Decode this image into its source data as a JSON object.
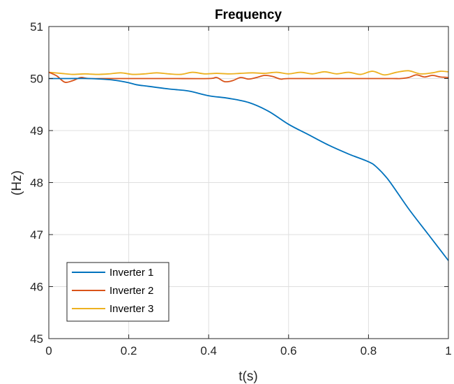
{
  "chart_data": {
    "type": "line",
    "title": "Frequency",
    "xlabel": "t(s)",
    "ylabel": "(Hz)",
    "xlim": [
      0,
      1
    ],
    "ylim": [
      45,
      51
    ],
    "xticks": [
      0,
      0.2,
      0.4,
      0.6,
      0.8,
      1
    ],
    "xtick_labels": [
      "0",
      "0.2",
      "0.4",
      "0.6",
      "0.8",
      "1"
    ],
    "yticks": [
      45,
      46,
      47,
      48,
      49,
      50,
      51
    ],
    "ytick_labels": [
      "45",
      "46",
      "47",
      "48",
      "49",
      "50",
      "51"
    ],
    "grid": true,
    "legend_position": "bottom-left",
    "series": [
      {
        "name": "Inverter 1",
        "color": "#0072BD",
        "x": [
          0,
          0.05,
          0.1,
          0.15,
          0.18,
          0.2,
          0.22,
          0.25,
          0.3,
          0.35,
          0.4,
          0.45,
          0.5,
          0.55,
          0.6,
          0.65,
          0.7,
          0.75,
          0.8,
          0.82,
          0.85,
          0.9,
          0.95,
          1.0
        ],
        "y": [
          50.0,
          50.0,
          50.0,
          49.98,
          49.95,
          49.92,
          49.88,
          49.85,
          49.8,
          49.76,
          49.67,
          49.62,
          49.54,
          49.37,
          49.12,
          48.92,
          48.72,
          48.55,
          48.4,
          48.3,
          48.05,
          47.5,
          47.0,
          46.5
        ]
      },
      {
        "name": "Inverter 2",
        "color": "#D95319",
        "x": [
          0,
          0.02,
          0.04,
          0.06,
          0.08,
          0.1,
          0.15,
          0.2,
          0.3,
          0.4,
          0.42,
          0.44,
          0.46,
          0.48,
          0.5,
          0.52,
          0.54,
          0.56,
          0.58,
          0.6,
          0.7,
          0.8,
          0.86,
          0.88,
          0.9,
          0.92,
          0.94,
          0.96,
          0.98,
          1.0
        ],
        "y": [
          50.12,
          50.05,
          49.93,
          49.96,
          50.02,
          50.0,
          50.0,
          50.0,
          50.0,
          50.0,
          50.02,
          49.94,
          49.96,
          50.02,
          49.99,
          50.02,
          50.06,
          50.04,
          49.99,
          50.0,
          50.0,
          50.0,
          50.0,
          50.0,
          50.02,
          50.07,
          50.03,
          50.06,
          50.03,
          50.02
        ]
      },
      {
        "name": "Inverter 3",
        "color": "#EDB120",
        "x": [
          0,
          0.03,
          0.06,
          0.09,
          0.12,
          0.15,
          0.18,
          0.21,
          0.24,
          0.27,
          0.3,
          0.33,
          0.36,
          0.39,
          0.42,
          0.45,
          0.48,
          0.51,
          0.54,
          0.57,
          0.6,
          0.63,
          0.66,
          0.69,
          0.72,
          0.75,
          0.78,
          0.81,
          0.84,
          0.87,
          0.9,
          0.93,
          0.96,
          0.98,
          1.0
        ],
        "y": [
          50.12,
          50.1,
          50.08,
          50.09,
          50.08,
          50.09,
          50.11,
          50.08,
          50.09,
          50.11,
          50.09,
          50.08,
          50.12,
          50.09,
          50.1,
          50.09,
          50.1,
          50.11,
          50.1,
          50.12,
          50.09,
          50.12,
          50.09,
          50.13,
          50.09,
          50.12,
          50.08,
          50.14,
          50.07,
          50.12,
          50.15,
          50.09,
          50.11,
          50.14,
          50.13
        ]
      }
    ]
  }
}
